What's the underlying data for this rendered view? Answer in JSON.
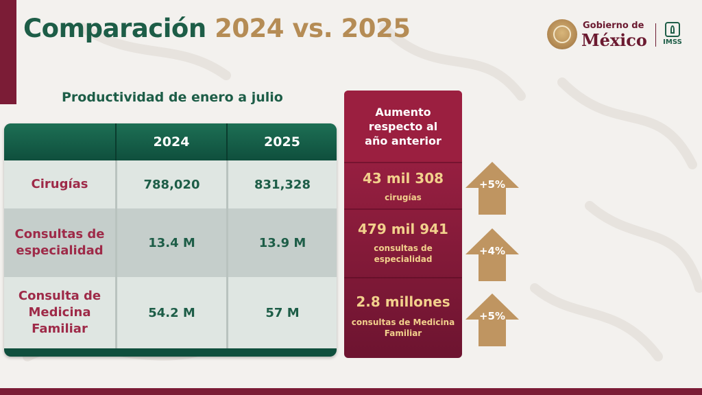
{
  "title": {
    "part1": "Comparación",
    "part2": "2024 vs. 2025"
  },
  "logo": {
    "gobierno": "Gobierno de",
    "mexico": "México",
    "imss": "IMSS"
  },
  "subtitle": "Productividad de enero a julio",
  "table": {
    "headers": [
      "",
      "2024",
      "2025"
    ],
    "rows": [
      {
        "label": "Cirugías",
        "v2024": "788,020",
        "v2025": "831,328"
      },
      {
        "label": "Consultas de especialidad",
        "v2024": "13.4 M",
        "v2025": "13.9 M"
      },
      {
        "label": "Consulta de Medicina Familiar",
        "v2024": "54.2 M",
        "v2025": "57 M"
      }
    ]
  },
  "increase_panel": {
    "title": "Aumento respecto al año anterior",
    "items": [
      {
        "value": "43 mil 308",
        "desc": "cirugías",
        "pct": "+5%"
      },
      {
        "value": "479 mil 941",
        "desc": "consultas de especialidad",
        "pct": "+4%"
      },
      {
        "value": "2.8 millones",
        "desc": "consultas de Medicina Familiar",
        "pct": "+5%"
      }
    ]
  },
  "colors": {
    "green": "#1d5d47",
    "gold": "#b58c55",
    "maroon": "#7b1c36",
    "label_red": "#9e2a48",
    "panel_text": "#f2d08c"
  },
  "icons": [
    "coat-of-arms-icon",
    "imss-logo-icon",
    "up-arrow-icon"
  ]
}
